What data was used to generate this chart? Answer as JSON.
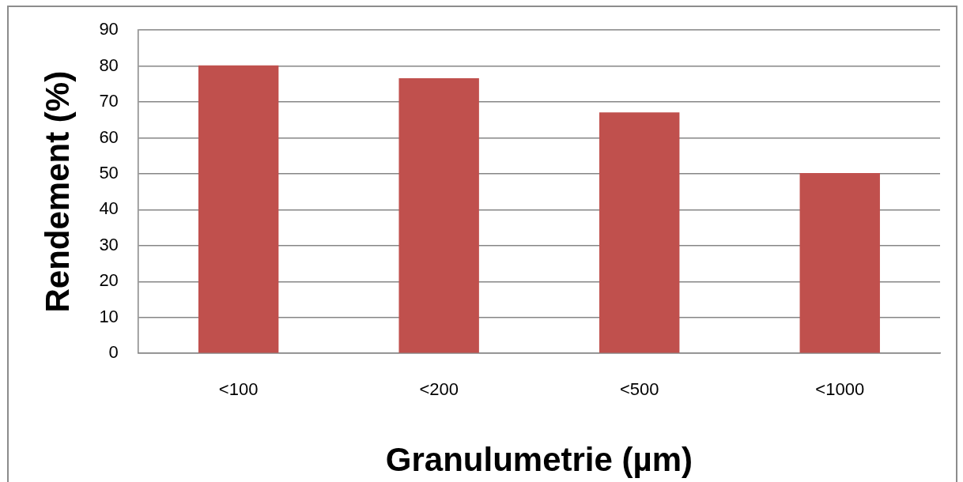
{
  "chart_data": {
    "type": "bar",
    "xlabel": "Granulumetrie (µm)",
    "ylabel": "Rendement (%)",
    "categories": [
      "<100",
      "<200",
      "<500",
      "<1000"
    ],
    "values": [
      80.2,
      76.6,
      67.1,
      50.2
    ],
    "color": "#c0504d",
    "ylim": [
      0,
      90
    ],
    "yticks": [
      0,
      10,
      20,
      30,
      40,
      50,
      60,
      70,
      80,
      90
    ],
    "grid": "y"
  }
}
